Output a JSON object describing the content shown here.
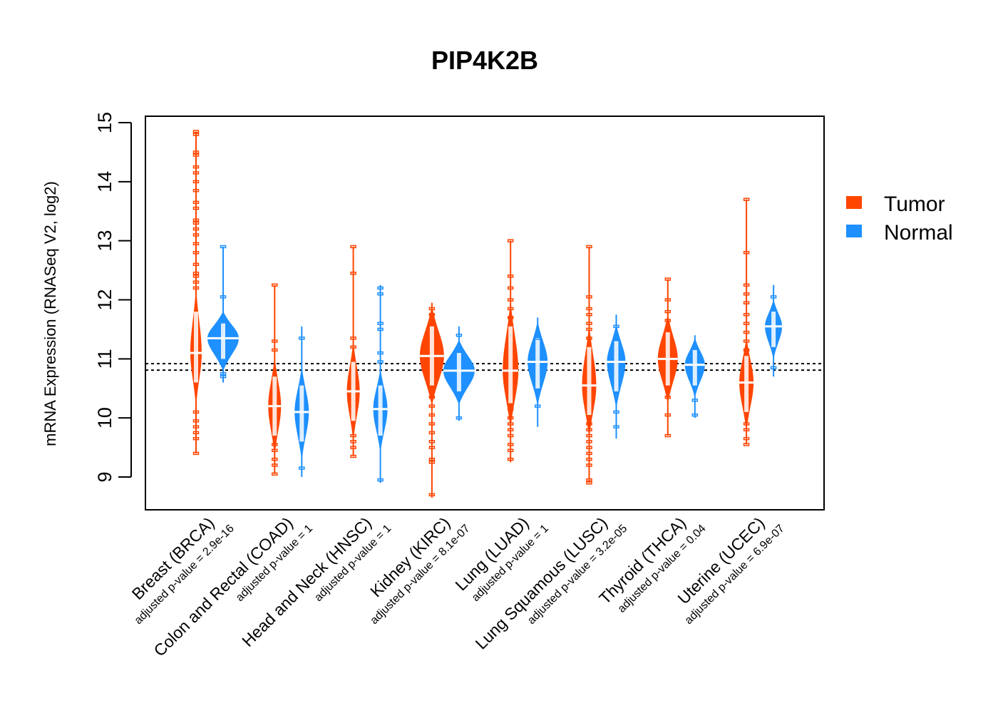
{
  "chart_data": {
    "type": "violin",
    "title": "PIP4K2B",
    "xlabel": "",
    "ylabel": "mRNA Expression (RNASeq V2, log2)",
    "ylim": [
      8.45,
      15.1
    ],
    "yticks": [
      9,
      10,
      11,
      12,
      13,
      14,
      15
    ],
    "grid": false,
    "legend": {
      "placement": "right",
      "entries": [
        {
          "name": "Tumor",
          "color": "#FF4500"
        },
        {
          "name": "Normal",
          "color": "#1E90FF"
        }
      ]
    },
    "reference_lines": [
      10.92,
      10.81
    ],
    "categories": [
      {
        "label": "Breast (BRCA)",
        "pvalue_label": "adjusted p-value = 2.9e-16"
      },
      {
        "label": "Colon and Rectal (COAD)",
        "pvalue_label": "adjusted p-value = 1"
      },
      {
        "label": "Head and Neck (HNSC)",
        "pvalue_label": "adjusted p-value = 1"
      },
      {
        "label": "Kidney (KIRC)",
        "pvalue_label": "adjusted p-value = 8.1e-07"
      },
      {
        "label": "Lung (LUAD)",
        "pvalue_label": "adjusted p-value = 1"
      },
      {
        "label": "Lung Squamous (LUSC)",
        "pvalue_label": "adjusted p-value = 3.2e-05"
      },
      {
        "label": "Thyroid (THCA)",
        "pvalue_label": "adjusted p-value = 0.04"
      },
      {
        "label": "Uterine (UCEC)",
        "pvalue_label": "adjusted p-value = 6.9e-07"
      }
    ],
    "series": [
      {
        "name": "Tumor",
        "color": "#FF4500",
        "groups": [
          {
            "median": 11.1,
            "min": 9.4,
            "max": 14.85,
            "q1": 10.6,
            "q3": 11.8,
            "outliers": [
              14.85,
              14.8,
              14.5,
              14.45,
              14.25,
              14.15,
              14.0,
              13.85,
              13.65,
              13.55,
              13.35,
              13.3,
              13.2,
              13.1,
              12.95,
              12.8,
              12.6,
              12.45,
              12.4,
              12.3,
              12.2,
              10.1,
              9.95,
              9.85,
              9.75,
              9.65,
              9.4
            ]
          },
          {
            "median": 10.2,
            "min": 9.05,
            "max": 12.25,
            "q1": 9.7,
            "q3": 10.7,
            "outliers": [
              12.25,
              11.3,
              11.15,
              9.55,
              9.45,
              9.3,
              9.2,
              9.05
            ]
          },
          {
            "median": 10.45,
            "min": 9.35,
            "max": 12.9,
            "q1": 9.95,
            "q3": 10.95,
            "outliers": [
              12.9,
              12.45,
              11.35,
              11.2,
              9.7,
              9.6,
              9.5,
              9.35
            ]
          },
          {
            "median": 11.05,
            "min": 8.65,
            "max": 11.95,
            "q1": 10.55,
            "q3": 11.55,
            "outliers": [
              11.85,
              11.75,
              11.6,
              10.35,
              10.2,
              10.05,
              9.9,
              9.75,
              9.6,
              9.5,
              9.3,
              9.25,
              8.7
            ]
          },
          {
            "median": 10.8,
            "min": 9.25,
            "max": 13.0,
            "q1": 10.25,
            "q3": 11.55,
            "outliers": [
              13.0,
              12.4,
              12.2,
              12.0,
              11.85,
              11.7,
              10.15,
              10.0,
              9.9,
              9.8,
              9.7,
              9.55,
              9.45,
              9.3
            ]
          },
          {
            "median": 10.55,
            "min": 8.9,
            "max": 12.9,
            "q1": 10.05,
            "q3": 11.2,
            "outliers": [
              12.9,
              12.05,
              11.85,
              11.75,
              11.6,
              11.5,
              11.35,
              9.9,
              9.8,
              9.7,
              9.6,
              9.5,
              9.4,
              9.3,
              9.2,
              8.95,
              8.9
            ]
          },
          {
            "median": 11.0,
            "min": 9.7,
            "max": 12.35,
            "q1": 10.55,
            "q3": 11.45,
            "outliers": [
              12.35,
              12.0,
              11.8,
              11.65,
              10.35,
              10.05,
              9.7
            ]
          },
          {
            "median": 10.6,
            "min": 9.55,
            "max": 13.7,
            "q1": 10.1,
            "q3": 11.05,
            "outliers": [
              13.7,
              12.8,
              12.25,
              12.1,
              11.95,
              11.75,
              11.6,
              11.45,
              11.3,
              11.15,
              9.9,
              9.8,
              9.65,
              9.55
            ]
          }
        ]
      },
      {
        "name": "Normal",
        "color": "#1E90FF",
        "groups": [
          {
            "median": 11.35,
            "min": 10.6,
            "max": 12.9,
            "q1": 11.0,
            "q3": 11.6,
            "outliers": [
              12.9,
              12.05,
              10.75,
              10.7
            ]
          },
          {
            "median": 10.1,
            "min": 9.0,
            "max": 11.55,
            "q1": 9.6,
            "q3": 10.55,
            "outliers": [
              11.35,
              9.15
            ]
          },
          {
            "median": 10.15,
            "min": 8.9,
            "max": 12.25,
            "q1": 9.7,
            "q3": 10.55,
            "outliers": [
              12.2,
              12.1,
              11.6,
              11.5,
              11.1,
              10.95,
              8.95
            ]
          },
          {
            "median": 10.8,
            "min": 9.95,
            "max": 11.55,
            "q1": 10.45,
            "q3": 11.1,
            "outliers": [
              11.4,
              10.0
            ]
          },
          {
            "median": 10.95,
            "min": 9.85,
            "max": 11.7,
            "q1": 10.5,
            "q3": 11.35,
            "outliers": [
              11.35,
              10.2
            ]
          },
          {
            "median": 10.95,
            "min": 9.65,
            "max": 11.75,
            "q1": 10.45,
            "q3": 11.3,
            "outliers": [
              11.55,
              10.1,
              9.85
            ]
          },
          {
            "median": 10.9,
            "min": 10.0,
            "max": 11.4,
            "q1": 10.55,
            "q3": 11.15,
            "outliers": [
              10.3,
              10.05
            ]
          },
          {
            "median": 11.55,
            "min": 10.7,
            "max": 12.25,
            "q1": 11.2,
            "q3": 11.8,
            "outliers": [
              12.05,
              10.85
            ]
          }
        ]
      }
    ]
  }
}
